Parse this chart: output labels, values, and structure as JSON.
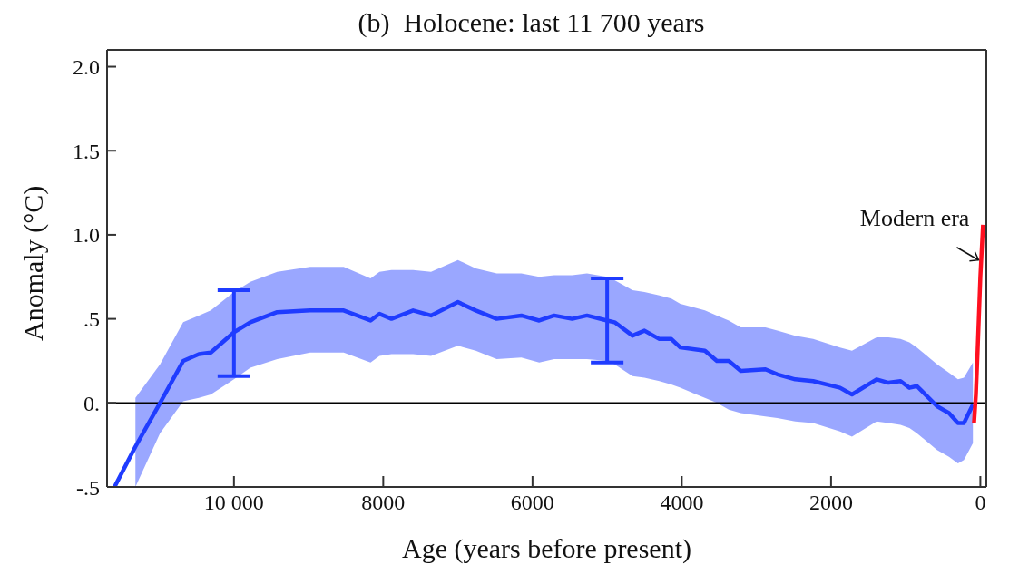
{
  "chart_data": {
    "type": "line",
    "title": "(b)  Holocene: last 11 700 years",
    "xlabel": "Age (years before present)",
    "ylabel": "Anomaly (°C)",
    "xlim": [
      11700,
      -80
    ],
    "ylim": [
      -0.5,
      2.1
    ],
    "xticks": [
      {
        "value": 10000,
        "label": "10 000"
      },
      8000,
      6000,
      4000,
      2000,
      0
    ],
    "yticks": [
      {
        "value": -0.5,
        "label": "-.5"
      },
      {
        "value": 0,
        "label": "0."
      },
      {
        "value": 0.5,
        "label": ".5"
      },
      {
        "value": 1,
        "label": "1.0"
      },
      1.5,
      {
        "value": 2,
        "label": "2.0"
      }
    ],
    "grid": false,
    "legend": false,
    "marker": "none",
    "line_style": "solid",
    "series": [
      {
        "color": "#1f3cff",
        "x": [
          11600,
          11320,
          10990,
          10680,
          10470,
          10310,
          10000,
          9780,
          9420,
          8980,
          8530,
          8170,
          8050,
          7890,
          7600,
          7360,
          7000,
          6760,
          6480,
          6150,
          5910,
          5710,
          5470,
          5270,
          5000,
          4900,
          4660,
          4500,
          4300,
          4140,
          4020,
          3690,
          3530,
          3370,
          3210,
          2880,
          2720,
          2480,
          2240,
          1880,
          1720,
          1390,
          1230,
          1070,
          950,
          850,
          580,
          420,
          300,
          220,
          100
        ],
        "values": [
          -0.5,
          -0.26,
          0,
          0.25,
          0.29,
          0.3,
          0.42,
          0.48,
          0.54,
          0.55,
          0.55,
          0.49,
          0.53,
          0.5,
          0.55,
          0.52,
          0.6,
          0.55,
          0.5,
          0.52,
          0.49,
          0.52,
          0.5,
          0.52,
          0.49,
          0.48,
          0.4,
          0.43,
          0.38,
          0.38,
          0.33,
          0.31,
          0.25,
          0.25,
          0.19,
          0.2,
          0.17,
          0.14,
          0.13,
          0.09,
          0.05,
          0.14,
          0.12,
          0.13,
          0.09,
          0.1,
          -0.02,
          -0.06,
          -0.12,
          -0.12,
          -0.01
        ],
        "lower": [
          null,
          -0.5,
          -0.18,
          0.01,
          0.03,
          0.05,
          0.14,
          0.21,
          0.26,
          0.3,
          0.3,
          0.24,
          0.28,
          0.29,
          0.29,
          0.28,
          0.34,
          0.31,
          0.26,
          0.27,
          0.24,
          0.26,
          0.26,
          0.26,
          0.25,
          0.23,
          0.16,
          0.15,
          0.13,
          0.11,
          0.09,
          0.03,
          0.0,
          -0.04,
          -0.06,
          -0.08,
          -0.09,
          -0.11,
          -0.12,
          -0.17,
          -0.2,
          -0.11,
          -0.12,
          -0.13,
          -0.15,
          -0.18,
          -0.28,
          -0.32,
          -0.36,
          -0.34,
          -0.24
        ],
        "upper": [
          null,
          0.03,
          0.23,
          0.48,
          0.52,
          0.55,
          0.66,
          0.72,
          0.78,
          0.81,
          0.81,
          0.74,
          0.78,
          0.79,
          0.79,
          0.78,
          0.85,
          0.8,
          0.77,
          0.77,
          0.75,
          0.76,
          0.76,
          0.77,
          0.75,
          0.73,
          0.67,
          0.66,
          0.64,
          0.62,
          0.59,
          0.55,
          0.52,
          0.49,
          0.45,
          0.45,
          0.43,
          0.4,
          0.38,
          0.33,
          0.31,
          0.39,
          0.39,
          0.38,
          0.36,
          0.33,
          0.23,
          0.18,
          0.14,
          0.15,
          0.24
        ],
        "errors": [
          null,
          null,
          null,
          null,
          null,
          null,
          [
            0.16,
            0.67
          ],
          null,
          null,
          null,
          null,
          null,
          null,
          null,
          null,
          null,
          null,
          null,
          null,
          null,
          null,
          null,
          null,
          null,
          [
            0.24,
            0.74
          ],
          null,
          null,
          null,
          null,
          null,
          null,
          null,
          null,
          null,
          null,
          null,
          null,
          null,
          null,
          null,
          null,
          null,
          null,
          null,
          null,
          null,
          null,
          null,
          null,
          null,
          null
        ]
      },
      {
        "color": "#ff1020",
        "x": [
          85,
          60,
          36,
          0,
          -36
        ],
        "values": [
          -0.12,
          0.05,
          0.32,
          0.75,
          1.06
        ]
      }
    ],
    "ref_lines": [
      {
        "axis": "y",
        "value": 0,
        "color": "#000000"
      }
    ],
    "annotations": [
      {
        "text": "Modern era",
        "x": 0,
        "y": 0.85
      }
    ]
  }
}
